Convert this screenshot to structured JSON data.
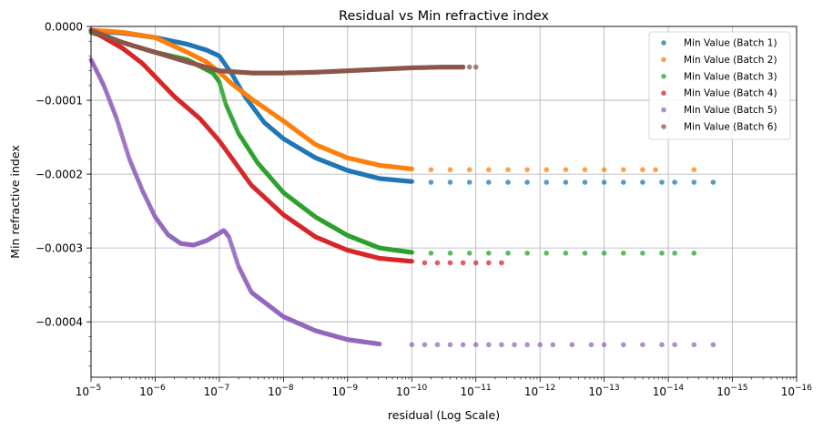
{
  "chart_data": {
    "type": "scatter",
    "title": "Residual vs Min refractive index",
    "xlabel": "residual (Log Scale)",
    "ylabel": "Min refractive index",
    "x_scale": "log",
    "x_reversed": true,
    "xlim_exponent": [
      -5,
      -16
    ],
    "ylim": [
      -0.000475,
      0
    ],
    "x_ticks": [
      {
        "base": "10",
        "exp": "−5",
        "e": -5
      },
      {
        "base": "10",
        "exp": "−6",
        "e": -6
      },
      {
        "base": "10",
        "exp": "−7",
        "e": -7
      },
      {
        "base": "10",
        "exp": "−8",
        "e": -8
      },
      {
        "base": "10",
        "exp": "−9",
        "e": -9
      },
      {
        "base": "10",
        "exp": "−10",
        "e": -10
      },
      {
        "base": "10",
        "exp": "−11",
        "e": -11
      },
      {
        "base": "10",
        "exp": "−12",
        "e": -12
      },
      {
        "base": "10",
        "exp": "−13",
        "e": -13
      },
      {
        "base": "10",
        "exp": "−14",
        "e": -14
      },
      {
        "base": "10",
        "exp": "−15",
        "e": -15
      },
      {
        "base": "10",
        "exp": "−16",
        "e": -16
      }
    ],
    "y_ticks": [
      {
        "label": "0.0000",
        "value": 0
      },
      {
        "label": "−0.0001",
        "value": -0.0001
      },
      {
        "label": "−0.0002",
        "value": -0.0002
      },
      {
        "label": "−0.0003",
        "value": -0.0003
      },
      {
        "label": "−0.0004",
        "value": -0.0004
      }
    ],
    "grid": true,
    "legend_position": "top-right",
    "series": [
      {
        "name": "Min Value (Batch 1)",
        "color": "#1f77b4",
        "curve_points": [
          [
            -5,
            -6e-06
          ],
          [
            -5.5,
            -9e-06
          ],
          [
            -6,
            -1.5e-05
          ],
          [
            -6.5,
            -2.4e-05
          ],
          [
            -6.8,
            -3.2e-05
          ],
          [
            -7,
            -4e-05
          ],
          [
            -7.2,
            -6.5e-05
          ],
          [
            -7.4,
            -9.5e-05
          ],
          [
            -7.7,
            -0.00013
          ],
          [
            -8,
            -0.000152
          ],
          [
            -8.5,
            -0.000178
          ],
          [
            -9,
            -0.000195
          ],
          [
            -9.5,
            -0.000206
          ],
          [
            -10,
            -0.00021
          ]
        ],
        "sparse_exponents": [
          -10.3,
          -10.6,
          -10.9,
          -11.2,
          -11.5,
          -11.8,
          -12.1,
          -12.4,
          -12.7,
          -13,
          -13.3,
          -13.6,
          -13.9,
          -14.1,
          -14.4,
          -14.7
        ],
        "plateau": -0.000211
      },
      {
        "name": "Min Value (Batch 2)",
        "color": "#ff7f0e",
        "curve_points": [
          [
            -5,
            -5e-06
          ],
          [
            -5.5,
            -8e-06
          ],
          [
            -6,
            -1.5e-05
          ],
          [
            -6.5,
            -3.5e-05
          ],
          [
            -6.8,
            -4.8e-05
          ],
          [
            -7,
            -6.2e-05
          ],
          [
            -7.2,
            -7.8e-05
          ],
          [
            -7.5,
            -9.8e-05
          ],
          [
            -8,
            -0.000128
          ],
          [
            -8.5,
            -0.00016
          ],
          [
            -9,
            -0.000178
          ],
          [
            -9.5,
            -0.000188
          ],
          [
            -10,
            -0.000193
          ]
        ],
        "sparse_exponents": [
          -10.3,
          -10.6,
          -10.9,
          -11.2,
          -11.5,
          -11.8,
          -12.1,
          -12.4,
          -12.7,
          -13,
          -13.3,
          -13.6,
          -13.8,
          -14.4
        ],
        "plateau": -0.000194
      },
      {
        "name": "Min Value (Batch 3)",
        "color": "#2ca02c",
        "curve_points": [
          [
            -5,
            -8e-06
          ],
          [
            -5.5,
            -2.2e-05
          ],
          [
            -6,
            -3.5e-05
          ],
          [
            -6.5,
            -4.5e-05
          ],
          [
            -6.9,
            -6.3e-05
          ],
          [
            -7,
            -7.5e-05
          ],
          [
            -7.1,
            -0.000105
          ],
          [
            -7.3,
            -0.000145
          ],
          [
            -7.6,
            -0.000185
          ],
          [
            -8,
            -0.000225
          ],
          [
            -8.5,
            -0.000258
          ],
          [
            -9,
            -0.000283
          ],
          [
            -9.5,
            -0.0003
          ],
          [
            -10,
            -0.000306
          ]
        ],
        "sparse_exponents": [
          -10.3,
          -10.6,
          -10.9,
          -11.2,
          -11.5,
          -11.8,
          -12.1,
          -12.4,
          -12.7,
          -13,
          -13.3,
          -13.6,
          -13.9,
          -14.1,
          -14.4
        ],
        "plateau": -0.000307
      },
      {
        "name": "Min Value (Batch 4)",
        "color": "#d62728",
        "curve_points": [
          [
            -5,
            -5e-06
          ],
          [
            -5.5,
            -3e-05
          ],
          [
            -5.8,
            -5e-05
          ],
          [
            -6,
            -6.8e-05
          ],
          [
            -6.3,
            -9.5e-05
          ],
          [
            -6.7,
            -0.000125
          ],
          [
            -7,
            -0.000155
          ],
          [
            -7.5,
            -0.000215
          ],
          [
            -8,
            -0.000255
          ],
          [
            -8.5,
            -0.000285
          ],
          [
            -9,
            -0.000303
          ],
          [
            -9.5,
            -0.000314
          ],
          [
            -10,
            -0.000318
          ]
        ],
        "sparse_exponents": [
          -10.2,
          -10.4,
          -10.6,
          -10.8,
          -11,
          -11.2,
          -11.4
        ],
        "plateau": -0.00032
      },
      {
        "name": "Min Value (Batch 5)",
        "color": "#9467bd",
        "curve_points": [
          [
            -5,
            -4.5e-05
          ],
          [
            -5.2,
            -8e-05
          ],
          [
            -5.4,
            -0.000125
          ],
          [
            -5.6,
            -0.00018
          ],
          [
            -5.8,
            -0.000222
          ],
          [
            -6,
            -0.000258
          ],
          [
            -6.2,
            -0.000282
          ],
          [
            -6.4,
            -0.000294
          ],
          [
            -6.6,
            -0.000296
          ],
          [
            -6.8,
            -0.00029
          ],
          [
            -7,
            -0.00028
          ],
          [
            -7.07,
            -0.000276
          ],
          [
            -7.15,
            -0.000285
          ],
          [
            -7.3,
            -0.000325
          ],
          [
            -7.5,
            -0.00036
          ],
          [
            -8,
            -0.000393
          ],
          [
            -8.5,
            -0.000412
          ],
          [
            -9,
            -0.000424
          ],
          [
            -9.5,
            -0.00043
          ]
        ],
        "sparse_exponents": [
          -10,
          -10.2,
          -10.4,
          -10.6,
          -10.8,
          -11,
          -11.2,
          -11.4,
          -11.6,
          -11.8,
          -12,
          -12.2,
          -12.5,
          -12.8,
          -13,
          -13.3,
          -13.6,
          -13.9,
          -14.1,
          -14.4,
          -14.7
        ],
        "plateau": -0.000431
      },
      {
        "name": "Min Value (Batch 6)",
        "color": "#8c564b",
        "curve_points": [
          [
            -5,
            -5e-06
          ],
          [
            -5.2,
            -1.2e-05
          ],
          [
            -5.5,
            -2.2e-05
          ],
          [
            -6,
            -3.5e-05
          ],
          [
            -6.5,
            -4.8e-05
          ],
          [
            -7,
            -6e-05
          ],
          [
            -7.5,
            -6.3e-05
          ],
          [
            -8,
            -6.3e-05
          ],
          [
            -8.5,
            -6.2e-05
          ],
          [
            -9,
            -6e-05
          ],
          [
            -9.5,
            -5.8e-05
          ],
          [
            -10,
            -5.6e-05
          ],
          [
            -10.5,
            -5.5e-05
          ],
          [
            -10.8,
            -5.5e-05
          ]
        ],
        "sparse_exponents": [
          -10.8,
          -10.9,
          -11
        ],
        "plateau": -5.5e-05
      }
    ]
  }
}
